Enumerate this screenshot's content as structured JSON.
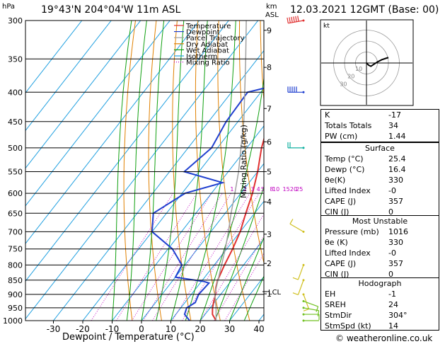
{
  "header": {
    "location": "19°43'N 204°04'W 11m ASL",
    "datetime": "12.03.2021 12GMT (Base: 00)",
    "hpa_label": "hPa",
    "km_label": "km",
    "asl_label": "ASL"
  },
  "footer": {
    "credit": "© weatheronline.co.uk"
  },
  "chart_data": {
    "type": "line",
    "xlabel": "Dewpoint / Temperature (°C)",
    "ylabel_right": "Mixing Ratio (g/kg)",
    "x_ticks": [
      -30,
      -20,
      -10,
      0,
      10,
      20,
      30,
      40
    ],
    "pressure_levels": [
      300,
      350,
      400,
      450,
      500,
      550,
      600,
      650,
      700,
      750,
      800,
      850,
      900,
      950,
      1000
    ],
    "km_ticks": [
      {
        "km": 9,
        "p": 312
      },
      {
        "km": 8,
        "p": 362
      },
      {
        "km": 7,
        "p": 427
      },
      {
        "km": 6,
        "p": 488
      },
      {
        "km": 5,
        "p": 550
      },
      {
        "km": 4,
        "p": 621
      },
      {
        "km": 3,
        "p": 707
      },
      {
        "km": 2,
        "p": 795
      },
      {
        "km": 1,
        "p": 898
      }
    ],
    "lcl": {
      "label": "LCL",
      "p": 890
    },
    "mixing_ratio_labels": [
      {
        "label": "1",
        "T": -3
      },
      {
        "label": "2",
        "T": 1.5
      },
      {
        "label": "3",
        "T": 4
      },
      {
        "label": "4",
        "T": 6
      },
      {
        "label": "5",
        "T": 7.5
      },
      {
        "label": "8",
        "T": 10.5
      },
      {
        "label": "10",
        "T": 12
      },
      {
        "label": "15",
        "T": 15.5
      },
      {
        "label": "20",
        "T": 18
      },
      {
        "label": "25",
        "T": 20
      }
    ],
    "legend": [
      {
        "label": "Temperature",
        "color": "#e03030",
        "dash": false
      },
      {
        "label": "Dewpoint",
        "color": "#2040d0",
        "dash": false
      },
      {
        "label": "Parcel Trajectory",
        "color": "#a0a0a0",
        "dash": false
      },
      {
        "label": "Dry Adiabat",
        "color": "#e08000",
        "dash": false
      },
      {
        "label": "Wet Adiabat",
        "color": "#10a010",
        "dash": false
      },
      {
        "label": "Isotherm",
        "color": "#20a0e0",
        "dash": false
      },
      {
        "label": "Mixing Ratio",
        "color": "#c000c0",
        "dash": true
      }
    ],
    "series": [
      {
        "name": "Temperature",
        "color": "#e03030",
        "points": [
          [
            1000,
            25.4
          ],
          [
            975,
            22.5
          ],
          [
            950,
            20.8
          ],
          [
            925,
            19.5
          ],
          [
            900,
            18.2
          ],
          [
            875,
            16.5
          ],
          [
            850,
            15.2
          ],
          [
            800,
            13.5
          ],
          [
            750,
            12.0
          ],
          [
            700,
            10.0
          ],
          [
            650,
            7.0
          ],
          [
            600,
            4.0
          ],
          [
            550,
            0.0
          ],
          [
            500,
            -5.0
          ],
          [
            450,
            -9.5
          ],
          [
            400,
            -15.5
          ],
          [
            350,
            -23.0
          ],
          [
            300,
            -31.0
          ]
        ]
      },
      {
        "name": "Dewpoint",
        "color": "#2040d0",
        "points": [
          [
            1000,
            16.4
          ],
          [
            975,
            13.0
          ],
          [
            950,
            12.0
          ],
          [
            930,
            13.5
          ],
          [
            900,
            12.5
          ],
          [
            860,
            13.0
          ],
          [
            855,
            11.0
          ],
          [
            840,
            0.0
          ],
          [
            800,
            -1.0
          ],
          [
            750,
            -8.5
          ],
          [
            700,
            -20.0
          ],
          [
            650,
            -24.5
          ],
          [
            600,
            -19.0
          ],
          [
            575,
            -9.0
          ],
          [
            550,
            -25.0
          ],
          [
            500,
            -22.0
          ],
          [
            450,
            -24.0
          ],
          [
            400,
            -24.5
          ],
          [
            380,
            -10.0
          ],
          [
            365,
            -25.0
          ],
          [
            350,
            -8.0
          ],
          [
            330,
            -3.5
          ],
          [
            320,
            -15.0
          ],
          [
            300,
            -11.0
          ]
        ]
      },
      {
        "name": "Parcel Trajectory",
        "color": "#a0a0a0",
        "points": [
          [
            1000,
            25.4
          ],
          [
            950,
            22.0
          ],
          [
            925,
            20.0
          ],
          [
            900,
            18.0
          ],
          [
            850,
            15.3
          ],
          [
            800,
            12.5
          ],
          [
            750,
            9.5
          ],
          [
            700,
            6.0
          ],
          [
            650,
            2.0
          ],
          [
            600,
            -2.0
          ],
          [
            550,
            -6.5
          ],
          [
            500,
            -12.0
          ],
          [
            450,
            -18.0
          ],
          [
            400,
            -25.5
          ],
          [
            350,
            -34.0
          ],
          [
            300,
            -44.0
          ]
        ]
      }
    ],
    "isotherms": [
      -40,
      -30,
      -20,
      -10,
      0,
      10,
      20,
      30,
      40
    ],
    "dry_adiabats_theta": [
      270,
      280,
      290,
      300,
      310,
      320,
      330,
      340,
      350,
      360,
      370,
      380,
      390,
      400,
      410
    ],
    "wet_adiabats_t1000": [
      -10,
      -5,
      0,
      5,
      10,
      15,
      20,
      25,
      30,
      35
    ],
    "mixing_ratios": [
      1,
      2,
      3,
      4,
      5,
      8,
      10,
      15,
      20,
      25
    ],
    "wind_barbs": [
      {
        "p": 300,
        "color": "#e03030",
        "dir": 260,
        "speed": 60
      },
      {
        "p": 400,
        "color": "#2040d0",
        "dir": 270,
        "speed": 50
      },
      {
        "p": 500,
        "color": "#10b0a0",
        "dir": 270,
        "speed": 20
      },
      {
        "p": 700,
        "color": "#d0c020",
        "dir": 300,
        "speed": 10
      },
      {
        "p": 800,
        "color": "#d0c020",
        "dir": 200,
        "speed": 10
      },
      {
        "p": 850,
        "color": "#d0c020",
        "dir": 200,
        "speed": 10
      },
      {
        "p": 900,
        "color": "#d0c020",
        "dir": 160,
        "speed": 10
      },
      {
        "p": 925,
        "color": "#70c020",
        "dir": 110,
        "speed": 10
      },
      {
        "p": 950,
        "color": "#70c020",
        "dir": 100,
        "speed": 10
      },
      {
        "p": 975,
        "color": "#70c020",
        "dir": 90,
        "speed": 10
      },
      {
        "p": 1000,
        "color": "#70c020",
        "dir": 90,
        "speed": 5
      }
    ]
  },
  "hodograph": {
    "title": "kt",
    "ring_labels": [
      "10",
      "20",
      "30"
    ],
    "trace_u": [
      0,
      2,
      4,
      7,
      10,
      14,
      20
    ],
    "trace_v": [
      0,
      -2,
      -3,
      -1,
      1,
      3,
      5
    ]
  },
  "indices": {
    "rows": [
      {
        "label": "K",
        "value": "-17"
      },
      {
        "label": "Totals Totals",
        "value": "34"
      },
      {
        "label": "PW (cm)",
        "value": "1.44"
      }
    ]
  },
  "surface": {
    "title": "Surface",
    "rows": [
      {
        "label": "Temp (°C)",
        "value": "25.4"
      },
      {
        "label": "Dewp (°C)",
        "value": "16.4"
      },
      {
        "label": "θe(K)",
        "value": "330"
      },
      {
        "label": "Lifted Index",
        "value": "-0"
      },
      {
        "label": "CAPE (J)",
        "value": "357"
      },
      {
        "label": "CIN (J)",
        "value": "0"
      }
    ]
  },
  "most_unstable": {
    "title": "Most Unstable",
    "rows": [
      {
        "label": "Pressure (mb)",
        "value": "1016"
      },
      {
        "label": "θe (K)",
        "value": "330"
      },
      {
        "label": "Lifted Index",
        "value": "-0"
      },
      {
        "label": "CAPE (J)",
        "value": "357"
      },
      {
        "label": "CIN (J)",
        "value": "0"
      }
    ]
  },
  "hodograph_stats": {
    "title": "Hodograph",
    "rows": [
      {
        "label": "EH",
        "value": "-1"
      },
      {
        "label": "SREH",
        "value": "24"
      },
      {
        "label": "StmDir",
        "value": "304°"
      },
      {
        "label": "StmSpd (kt)",
        "value": "14"
      }
    ]
  }
}
